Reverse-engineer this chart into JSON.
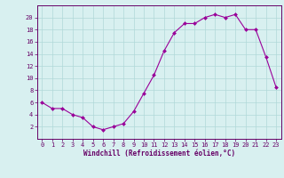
{
  "x": [
    0,
    1,
    2,
    3,
    4,
    5,
    6,
    7,
    8,
    9,
    10,
    11,
    12,
    13,
    14,
    15,
    16,
    17,
    18,
    19,
    20,
    21,
    22,
    23
  ],
  "y": [
    6,
    5,
    5,
    4,
    3.5,
    2,
    1.5,
    2,
    2.5,
    4.5,
    7.5,
    10.5,
    14.5,
    17.5,
    19,
    19,
    20,
    20.5,
    20,
    20.5,
    18,
    18,
    13.5,
    8.5
  ],
  "line_color": "#990099",
  "marker_color": "#990099",
  "bg_color": "#d8f0f0",
  "grid_color": "#b0d8d8",
  "axis_color": "#660066",
  "xlabel": "Windchill (Refroidissement éolien,°C)",
  "ylim": [
    0,
    22
  ],
  "xlim": [
    -0.5,
    23.5
  ],
  "yticks": [
    2,
    4,
    6,
    8,
    10,
    12,
    14,
    16,
    18,
    20
  ],
  "xticks": [
    0,
    1,
    2,
    3,
    4,
    5,
    6,
    7,
    8,
    9,
    10,
    11,
    12,
    13,
    14,
    15,
    16,
    17,
    18,
    19,
    20,
    21,
    22,
    23
  ],
  "tick_fontsize": 5.0,
  "xlabel_fontsize": 5.5
}
